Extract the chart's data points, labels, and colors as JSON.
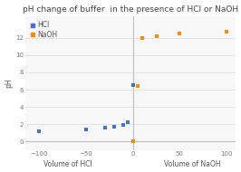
{
  "title": "pH change of buffer  in the presence of HCl or NaOH",
  "ylabel": "pH",
  "xlabel_left": "Volume of HCl",
  "xlabel_right": "Volume of NaOH",
  "hcl_x": [
    -100,
    -50,
    -30,
    -20,
    -10,
    -5,
    0
  ],
  "hcl_y": [
    1.2,
    1.4,
    1.6,
    1.7,
    1.9,
    2.2,
    6.5
  ],
  "naoh_x": [
    0,
    5,
    10,
    25,
    50,
    100
  ],
  "naoh_y": [
    0.05,
    6.4,
    12.0,
    12.2,
    12.5,
    12.7
  ],
  "hcl_color": "#4472C4",
  "naoh_color": "#FF8C00",
  "bg_color": "#FFFFFF",
  "plot_bg": "#F8F8F8",
  "grid_color": "#E0E0E0",
  "xlim": [
    -115,
    110
  ],
  "ylim": [
    -1.0,
    14.5
  ],
  "yticks": [
    0,
    2,
    4,
    6,
    8,
    10,
    12
  ],
  "xticks": [
    -100,
    -50,
    0,
    50,
    100
  ],
  "title_fontsize": 6.5,
  "label_fontsize": 5.5,
  "tick_fontsize": 5.0,
  "legend_fontsize": 5.5
}
